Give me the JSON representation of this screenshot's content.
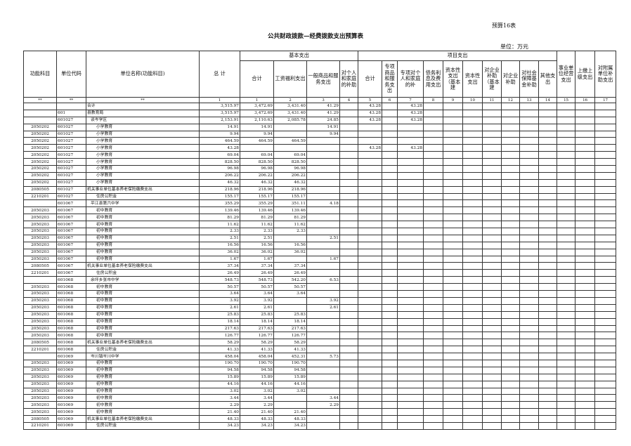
{
  "doc": {
    "tag": "预算16表",
    "title": "公共财政拨款—经费拨款支出预算表",
    "unit": "单位：万元"
  },
  "header": {
    "func_code": "功能科目",
    "unit_code": "单位代码",
    "unit_name": "单位名称(功能科目)",
    "total": "总 计",
    "basic": "基本支出",
    "project": "项目支出",
    "cols": [
      "合计",
      "工资福利支出",
      "一般商品和服务支出",
      "对个人和家庭的补助",
      "合计",
      "专项商品和服务支出",
      "专项对个人和家庭的补",
      "债务利息及费用支出",
      "资本性支出（基本建",
      "资本性支出",
      "对企业补助（基本建",
      "对企业补助",
      "对社会保障基金补助",
      "其他支出",
      "事业单位经营支出",
      "上缴上级支出",
      "对附属单位补助支出"
    ],
    "index": [
      "**",
      "**",
      "**",
      "1",
      "1",
      "2",
      "3",
      "4",
      "5",
      "6",
      "7",
      "8",
      "9",
      "10",
      "11",
      "12",
      "13",
      "14",
      "15",
      "16",
      "17"
    ]
  },
  "rows": [
    {
      "c": "",
      "u": "",
      "n": "合计",
      "l": 0,
      "v": [
        "3,515.97",
        "3,472.69",
        "3,431.40",
        "41.29",
        "",
        "43.28",
        "",
        "43.28"
      ]
    },
    {
      "c": "",
      "u": "601",
      "n": "县教育局",
      "l": 0,
      "v": [
        "3,515.97",
        "3,472.69",
        "3,431.40",
        "41.29",
        "",
        "43.28",
        "",
        "43.28"
      ]
    },
    {
      "c": "",
      "u": "601027",
      "n": "谈岑学区",
      "l": 1,
      "v": [
        "2,153.91",
        "2,110.63",
        "2,085.78",
        "24.85",
        "",
        "43.28",
        "",
        "43.28"
      ]
    },
    {
      "c": "2050202",
      "u": "601027",
      "n": "小学教育",
      "l": 2,
      "v": [
        "14.91",
        "14.91",
        "",
        "14.91"
      ]
    },
    {
      "c": "2050202",
      "u": "601027",
      "n": "小学教育",
      "l": 2,
      "v": [
        "9.94",
        "9.94",
        "",
        "9.94"
      ]
    },
    {
      "c": "2050202",
      "u": "601027",
      "n": "小学教育",
      "l": 2,
      "v": [
        "464.59",
        "464.59",
        "464.59"
      ]
    },
    {
      "c": "2050202",
      "u": "601027",
      "n": "小学教育",
      "l": 2,
      "v": [
        "43.28",
        "",
        "",
        "",
        "",
        "43.28",
        "",
        "43.28"
      ]
    },
    {
      "c": "2050202",
      "u": "601027",
      "n": "小学教育",
      "l": 2,
      "v": [
        "69.04",
        "69.04",
        "69.04"
      ]
    },
    {
      "c": "2050202",
      "u": "601027",
      "n": "小学教育",
      "l": 2,
      "v": [
        "828.50",
        "828.50",
        "828.50"
      ]
    },
    {
      "c": "2050202",
      "u": "601027",
      "n": "小学教育",
      "l": 2,
      "v": [
        "96.98",
        "96.98",
        "96.98"
      ]
    },
    {
      "c": "2050202",
      "u": "601027",
      "n": "小学教育",
      "l": 2,
      "v": [
        "206.22",
        "206.22",
        "206.22"
      ]
    },
    {
      "c": "2050202",
      "u": "601027",
      "n": "小学教育",
      "l": 2,
      "v": [
        "46.32",
        "46.32",
        "46.32"
      ]
    },
    {
      "c": "2080505",
      "u": "601027",
      "n": "机关事业单位基本养老保险缴费支出",
      "l": 0,
      "v": [
        "218.96",
        "218.96",
        "218.96"
      ]
    },
    {
      "c": "2210201",
      "u": "601027",
      "n": "住房公积金",
      "l": 2,
      "v": [
        "155.17",
        "155.17",
        "155.17"
      ]
    },
    {
      "c": "",
      "u": "601067",
      "n": "平江县第六中学",
      "l": 1,
      "v": [
        "355.29",
        "355.29",
        "351.11",
        "4.18"
      ]
    },
    {
      "c": "2050203",
      "u": "601067",
      "n": "初中教育",
      "l": 2,
      "v": [
        "139.46",
        "139.46",
        "139.46"
      ]
    },
    {
      "c": "2050203",
      "u": "601067",
      "n": "初中教育",
      "l": 2,
      "v": [
        "81.29",
        "81.29",
        "81.29"
      ]
    },
    {
      "c": "2050203",
      "u": "601067",
      "n": "初中教育",
      "l": 2,
      "v": [
        "11.62",
        "11.62",
        "11.62"
      ]
    },
    {
      "c": "2050203",
      "u": "601067",
      "n": "初中教育",
      "l": 2,
      "v": [
        "2.33",
        "2.33",
        "2.33"
      ]
    },
    {
      "c": "2050203",
      "u": "601067",
      "n": "初中教育",
      "l": 2,
      "v": [
        "2.51",
        "2.51",
        "",
        "2.51"
      ]
    },
    {
      "c": "2050203",
      "u": "601067",
      "n": "初中教育",
      "l": 2,
      "v": [
        "16.56",
        "16.56",
        "16.56"
      ]
    },
    {
      "c": "2050203",
      "u": "601067",
      "n": "初中教育",
      "l": 2,
      "v": [
        "36.02",
        "36.02",
        "36.02"
      ]
    },
    {
      "c": "2050203",
      "u": "601067",
      "n": "初中教育",
      "l": 2,
      "v": [
        "1.67",
        "1.67",
        "",
        "1.67"
      ]
    },
    {
      "c": "2080505",
      "u": "601067",
      "n": "机关事业单位基本养老保险缴费支出",
      "l": 0,
      "v": [
        "37.34",
        "37.34",
        "37.34"
      ]
    },
    {
      "c": "2210201",
      "u": "601067",
      "n": "住房公积金",
      "l": 2,
      "v": [
        "26.49",
        "26.49",
        "26.49"
      ]
    },
    {
      "c": "",
      "u": "601068",
      "n": "余坪乡张市中学",
      "l": 1,
      "v": [
        "548.73",
        "548.73",
        "542.20",
        "6.53"
      ]
    },
    {
      "c": "2050203",
      "u": "601068",
      "n": "初中教育",
      "l": 2,
      "v": [
        "50.57",
        "50.57",
        "50.57"
      ]
    },
    {
      "c": "2050203",
      "u": "601068",
      "n": "初中教育",
      "l": 2,
      "v": [
        "3.64",
        "3.64",
        "3.64"
      ]
    },
    {
      "c": "2050203",
      "u": "601068",
      "n": "初中教育",
      "l": 2,
      "v": [
        "3.92",
        "3.92",
        "",
        "3.92"
      ]
    },
    {
      "c": "2050203",
      "u": "601068",
      "n": "初中教育",
      "l": 2,
      "v": [
        "2.61",
        "2.61",
        "",
        "2.61"
      ]
    },
    {
      "c": "2050203",
      "u": "601068",
      "n": "初中教育",
      "l": 2,
      "v": [
        "25.83",
        "25.83",
        "25.83"
      ]
    },
    {
      "c": "2050203",
      "u": "601068",
      "n": "初中教育",
      "l": 2,
      "v": [
        "18.14",
        "18.14",
        "18.14"
      ]
    },
    {
      "c": "2050203",
      "u": "601068",
      "n": "初中教育",
      "l": 2,
      "v": [
        "217.63",
        "217.63",
        "217.63"
      ]
    },
    {
      "c": "2050203",
      "u": "601068",
      "n": "初中教育",
      "l": 2,
      "v": [
        "126.77",
        "126.77",
        "126.77"
      ]
    },
    {
      "c": "2080505",
      "u": "601068",
      "n": "机关事业单位基本养老保险缴费支出",
      "l": 0,
      "v": [
        "58.29",
        "58.29",
        "58.29"
      ]
    },
    {
      "c": "2210201",
      "u": "601068",
      "n": "住房公积金",
      "l": 2,
      "v": [
        "41.33",
        "41.33",
        "41.33"
      ]
    },
    {
      "c": "",
      "u": "601069",
      "n": "岑川镇岑川中学",
      "l": 1,
      "v": [
        "458.04",
        "458.04",
        "452.31",
        "5.73"
      ]
    },
    {
      "c": "2050203",
      "u": "601069",
      "n": "初中教育",
      "l": 2,
      "v": [
        "190.70",
        "190.70",
        "190.70"
      ]
    },
    {
      "c": "2050203",
      "u": "601069",
      "n": "初中教育",
      "l": 2,
      "v": [
        "94.58",
        "94.58",
        "94.58"
      ]
    },
    {
      "c": "2050203",
      "u": "601069",
      "n": "初中教育",
      "l": 2,
      "v": [
        "15.89",
        "15.89",
        "15.89"
      ]
    },
    {
      "c": "2050203",
      "u": "601069",
      "n": "初中教育",
      "l": 2,
      "v": [
        "44.16",
        "44.16",
        "44.16"
      ]
    },
    {
      "c": "2050203",
      "u": "601069",
      "n": "初中教育",
      "l": 2,
      "v": [
        "3.02",
        "3.02",
        "3.02"
      ]
    },
    {
      "c": "2050203",
      "u": "601069",
      "n": "初中教育",
      "l": 2,
      "v": [
        "3.44",
        "3.44",
        "",
        "3.44"
      ]
    },
    {
      "c": "2050203",
      "u": "601069",
      "n": "初中教育",
      "l": 2,
      "v": [
        "2.29",
        "2.29",
        "",
        "2.29"
      ]
    },
    {
      "c": "2050203",
      "u": "601069",
      "n": "初中教育",
      "l": 2,
      "v": [
        "21.40",
        "21.40",
        "21.40"
      ]
    },
    {
      "c": "2080505",
      "u": "601069",
      "n": "机关事业单位基本养老保险缴费支出",
      "l": 0,
      "v": [
        "48.33",
        "48.33",
        "48.33"
      ]
    },
    {
      "c": "2210201",
      "u": "601069",
      "n": "住房公积金",
      "l": 2,
      "v": [
        "34.23",
        "34.23",
        "34.23"
      ]
    }
  ]
}
